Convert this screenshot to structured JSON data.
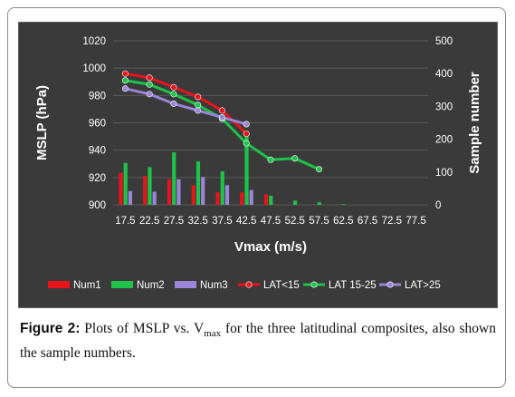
{
  "chart_data": {
    "type": "bar+line",
    "xlabel": "Vmax (m/s)",
    "ylabel_left": "MSLP (hPa)",
    "ylabel_right": "Sample number",
    "categories": [
      "17.5",
      "22.5",
      "27.5",
      "32.5",
      "37.5",
      "42.5",
      "47.5",
      "52.5",
      "57.5",
      "62.5",
      "67.5",
      "72.5",
      "77.5"
    ],
    "ylim_left": [
      900,
      1020
    ],
    "yticks_left": [
      "900",
      "920",
      "940",
      "960",
      "980",
      "1000",
      "1020"
    ],
    "ylim_right": [
      0,
      500
    ],
    "yticks_right": [
      "0",
      "100",
      "200",
      "300",
      "400",
      "500"
    ],
    "grid": true,
    "legend_position": "bottom",
    "bar_series": [
      {
        "name": "Num1",
        "color": "#e8141c",
        "values": [
          98,
          88,
          78,
          60,
          38,
          38,
          32,
          null,
          null,
          null,
          null,
          null,
          null
        ]
      },
      {
        "name": "Num2",
        "color": "#1fc24a",
        "values": [
          128,
          115,
          160,
          132,
          102,
          215,
          28,
          13,
          8,
          2,
          null,
          null,
          null
        ]
      },
      {
        "name": "Num3",
        "color": "#9a85d6",
        "values": [
          42,
          40,
          78,
          85,
          60,
          45,
          null,
          null,
          null,
          null,
          null,
          null,
          null
        ]
      }
    ],
    "line_series": [
      {
        "name": "LAT<15",
        "color": "#e8141c",
        "values": [
          996,
          993,
          986,
          979,
          969,
          952,
          null,
          null,
          null,
          null,
          null,
          null,
          null
        ]
      },
      {
        "name": "LAT 15-25",
        "color": "#1fc24a",
        "values": [
          991,
          988,
          981,
          973,
          963,
          945,
          933,
          934,
          926,
          null,
          null,
          null,
          null
        ]
      },
      {
        "name": "LAT>25",
        "color": "#9a85d6",
        "values": [
          985,
          981,
          974,
          969,
          964,
          959,
          null,
          null,
          null,
          null,
          null,
          null,
          null
        ]
      }
    ]
  },
  "caption": {
    "label": "Figure 2:",
    "text_before_sub": " Plots of MSLP vs. V",
    "sub": "max",
    "text_after_sub": " for the three latitudinal composites, also shown the sample numbers."
  }
}
